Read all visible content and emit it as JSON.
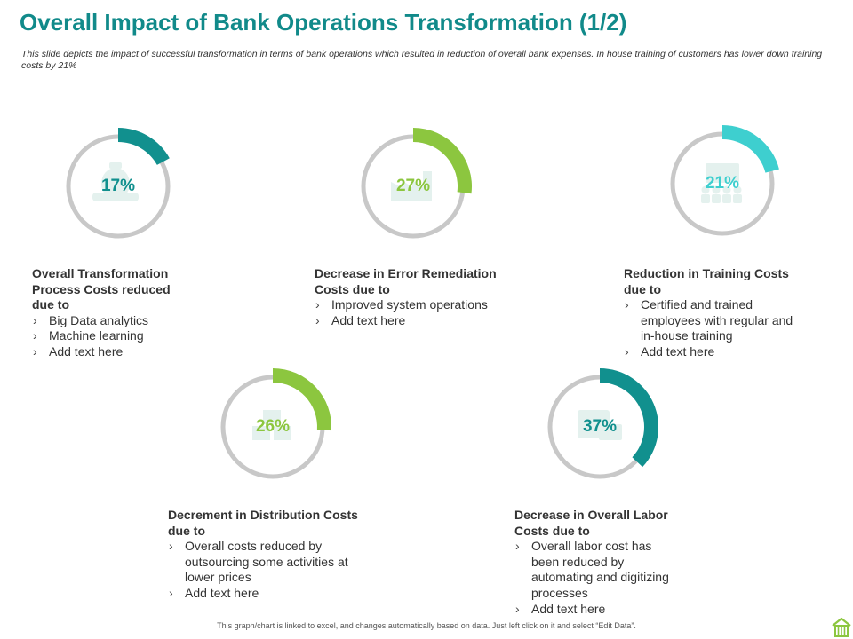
{
  "page": {
    "title": "Overall Impact of Bank Operations Transformation (1/2)",
    "subtitle": "This slide depicts the impact of successful transformation in terms of bank operations which resulted in reduction of overall bank expenses. In house training of customers has lower down training costs by 21%",
    "footer": "This graph/chart is linked to excel, and changes automatically based on data. Just left click on it and select “Edit Data”."
  },
  "colors": {
    "title": "#118a8a",
    "track": "#c8c8c8",
    "icon_fill": "#e4f1ee",
    "text": "#333333"
  },
  "chart_data": [
    {
      "type": "pie",
      "value": 17,
      "label": "17%",
      "color": "#11908e",
      "icon": "money-bag-hand-icon"
    },
    {
      "type": "pie",
      "value": 27,
      "label": "27%",
      "color": "#8cc63f",
      "icon": "factory-icon"
    },
    {
      "type": "pie",
      "value": 21,
      "label": "21%",
      "color": "#3ecfcf",
      "icon": "training-presentation-icon"
    },
    {
      "type": "pie",
      "value": 26,
      "label": "26%",
      "color": "#8cc63f",
      "icon": "boxes-icon"
    },
    {
      "type": "pie",
      "value": 37,
      "label": "37%",
      "color": "#11908e",
      "icon": "calendar-envelope-icon"
    }
  ],
  "blocks": [
    {
      "heading_lines": [
        "Overall Transformation",
        "Process Costs reduced",
        "due to"
      ],
      "bullets": [
        [
          "Big Data analytics"
        ],
        [
          "Machine learning"
        ],
        [
          "Add text here"
        ]
      ]
    },
    {
      "heading_lines": [
        "Decrease in Error Remediation",
        "Costs due to"
      ],
      "bullets": [
        [
          "Improved system operations"
        ],
        [
          "Add text here"
        ]
      ]
    },
    {
      "heading_lines": [
        "Reduction in Training Costs",
        "due to"
      ],
      "bullets": [
        [
          "Certified and trained",
          "employees with regular and",
          "in-house training"
        ],
        [
          "Add text here"
        ]
      ]
    },
    {
      "heading_lines": [
        "Decrement in Distribution Costs",
        "due to"
      ],
      "bullets": [
        [
          "Overall costs reduced by",
          "outsourcing some  activities at",
          "lower prices"
        ],
        [
          "Add text here"
        ]
      ]
    },
    {
      "heading_lines": [
        "Decrease in Overall Labor",
        "Costs due to"
      ],
      "bullets": [
        [
          "Overall labor cost has",
          "been reduced by",
          "automating and digitizing",
          "processes"
        ],
        [
          "Add text here"
        ]
      ]
    }
  ],
  "home": {
    "icon": "home-icon",
    "color": "#8cc63f"
  }
}
